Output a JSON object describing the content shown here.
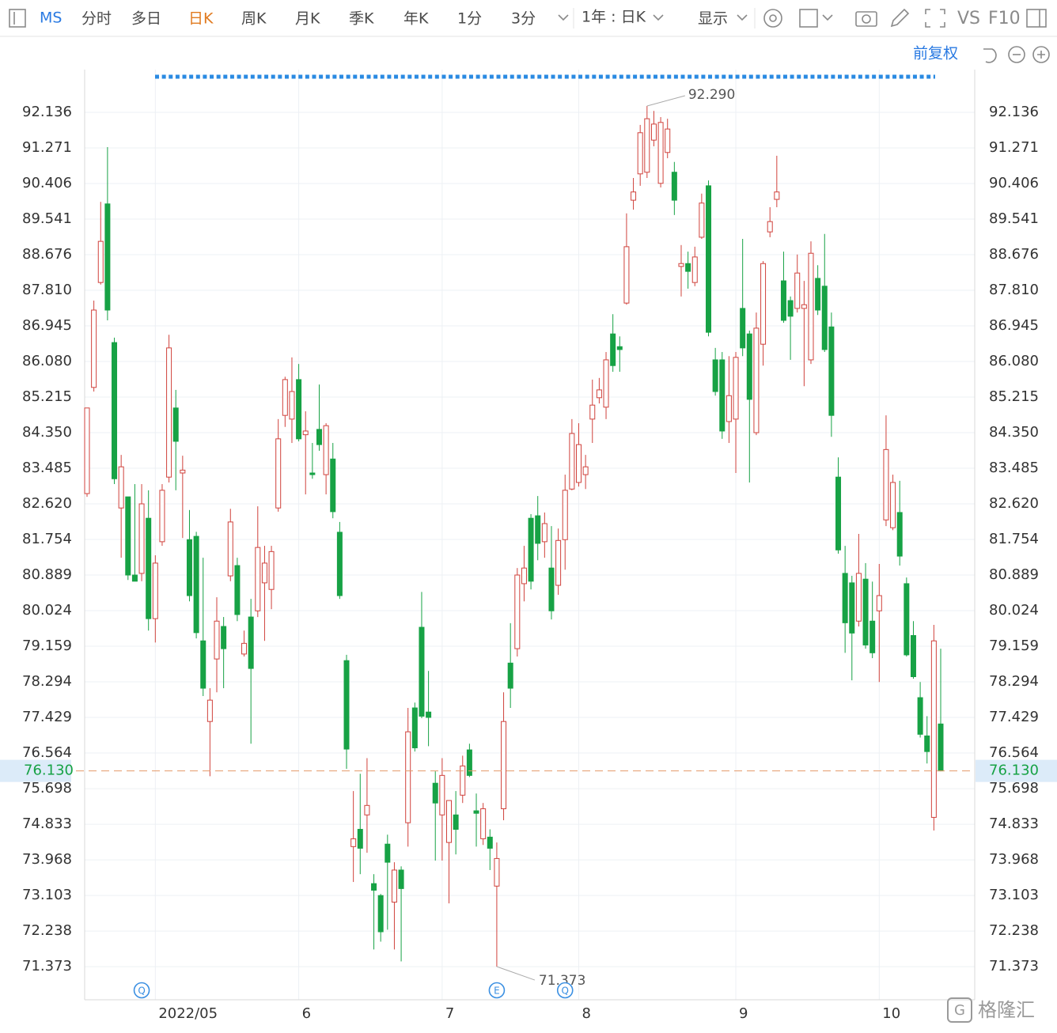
{
  "toolbar": {
    "symbol": "MS",
    "periods": [
      "分时",
      "多日",
      "日K",
      "周K",
      "月K",
      "季K",
      "年K",
      "1分",
      "3分"
    ],
    "range": "1年 : 日K",
    "display": "显示",
    "vs": "VS",
    "f10": "F10"
  },
  "adjust": "前复权",
  "watermark": "格隆汇",
  "chart_data": {
    "type": "candlestick",
    "up_color": "#d0423c",
    "down_color": "#17a245",
    "grid": true,
    "ylim": [
      70.567,
      93.174
    ],
    "yticks": [
      92.136,
      91.271,
      90.406,
      89.541,
      88.676,
      {
        "value": 87.81,
        "label": "87.810"
      },
      86.945,
      {
        "value": 86.08,
        "label": "86.080"
      },
      85.215,
      {
        "value": 84.35,
        "label": "84.350"
      },
      83.485,
      {
        "value": 82.62,
        "label": "82.620"
      },
      81.754,
      80.889,
      80.024,
      79.159,
      78.294,
      77.429,
      76.564,
      75.698,
      74.833,
      73.968,
      73.103,
      72.238,
      71.373
    ],
    "xticks": [
      {
        "value": 10,
        "label": "2022/05"
      },
      {
        "value": 31,
        "label": "6"
      },
      {
        "value": 52,
        "label": "7"
      },
      {
        "value": 72,
        "label": "8"
      },
      {
        "value": 95,
        "label": "9"
      },
      {
        "value": 116,
        "label": "10"
      }
    ],
    "last_price": {
      "value": 76.13,
      "label": "76.130"
    },
    "max_label": {
      "value": 92.29,
      "label": "92.290"
    },
    "min_label": 71.373,
    "events": [
      {
        "x": 8,
        "label": "Q"
      },
      {
        "x": 60,
        "label": "E"
      },
      {
        "x": 70,
        "label": "Q"
      }
    ],
    "open": [
      82.87,
      85.45,
      88.0,
      89.91,
      86.54,
      82.52,
      82.79,
      80.89,
      80.93,
      82.27,
      79.83,
      81.7,
      83.27,
      84.95,
      83.37,
      81.75,
      81.83,
      79.29,
      77.33,
      78.85,
      79.64,
      80.87,
      81.12,
      78.97,
      79.87,
      80.02,
      80.7,
      80.54,
      82.52,
      84.77,
      84.68,
      85.64,
      84.3,
      83.37,
      84.43,
      83.33,
      83.71,
      81.93,
      78.81,
      74.29,
      74.71,
      75.06,
      73.39,
      73.1,
      74.35,
      72.94,
      73.72,
      74.87,
      77.66,
      79.62,
      77.56,
      75.83,
      75.06,
      74.39,
      75.06,
      75.54,
      76.64,
      75.16,
      74.48,
      74.52,
      73.33,
      75.21,
      78.75,
      79.1,
      80.68,
      82.27,
      82.33,
      81.7,
      81.06,
      80.64,
      81.75,
      82.98,
      83.14,
      83.33,
      84.68,
      85.2,
      84.97,
      86.75,
      86.44,
      87.5,
      90.0,
      90.64,
      90.68,
      91.46,
      90.41,
      91.16,
      90.68,
      88.39,
      88.46,
      88.0,
      89.1,
      90.35,
      86.12,
      86.12,
      84.62,
      84.68,
      87.37,
      86.75,
      84.35,
      86.5,
      89.23,
      90.02,
      88.04,
      87.56,
      87.37,
      87.37,
      86.12,
      88.1,
      87.91,
      86.92,
      83.27,
      80.93,
      80.7,
      79.77,
      80.79,
      79.77,
      80.02,
      82.23,
      82.04,
      82.41,
      80.68,
      79.42,
      77.91,
      76.98,
      75.0,
      77.27
    ],
    "high": [
      84.95,
      87.56,
      89.96,
      91.29,
      86.66,
      83.81,
      82.79,
      83.1,
      83.1,
      82.95,
      81.37,
      83.1,
      86.73,
      85.39,
      83.79,
      82.47,
      81.94,
      81.31,
      78.14,
      80.35,
      79.87,
      82.5,
      81.31,
      79.54,
      80.31,
      82.56,
      81.6,
      81.6,
      84.68,
      85.71,
      86.18,
      86.02,
      84.87,
      84.1,
      85.52,
      84.58,
      84.1,
      82.18,
      78.95,
      75.64,
      76.06,
      76.44,
      73.62,
      73.14,
      74.58,
      73.91,
      73.81,
      77.66,
      77.79,
      80.48,
      78.56,
      76.12,
      76.44,
      75.41,
      75.64,
      76.5,
      76.79,
      75.58,
      75.35,
      74.71,
      74.39,
      78.04,
      79.72,
      81.06,
      81.6,
      82.37,
      82.81,
      82.41,
      82.08,
      82.02,
      83.33,
      84.68,
      84.58,
      83.81,
      85.64,
      85.68,
      86.31,
      87.23,
      86.69,
      89.68,
      90.54,
      91.83,
      92.29,
      92.17,
      92.02,
      91.98,
      90.93,
      88.91,
      88.75,
      88.87,
      90.16,
      90.48,
      86.41,
      86.31,
      86.21,
      86.31,
      89.06,
      86.83,
      87.27,
      88.52,
      89.83,
      91.08,
      88.75,
      87.66,
      88.68,
      88.04,
      89.0,
      88.42,
      89.18,
      87.27,
      83.75,
      81.6,
      80.87,
      81.89,
      81.18,
      80.73,
      81.16,
      84.77,
      83.33,
      83.18,
      80.83,
      79.77,
      78.29,
      77.46,
      79.68,
      79.1
    ],
    "low": [
      82.79,
      85.35,
      87.95,
      87.08,
      83.1,
      81.31,
      80.77,
      80.74,
      80.74,
      79.54,
      79.25,
      81.6,
      83.14,
      82.95,
      81.79,
      80.25,
      79.35,
      77.95,
      76.0,
      78.04,
      78.14,
      80.74,
      79.77,
      78.91,
      76.79,
      79.87,
      79.29,
      80.06,
      82.43,
      84.49,
      84.1,
      84.14,
      82.85,
      83.23,
      83.91,
      82.85,
      82.27,
      80.31,
      76.18,
      73.43,
      73.62,
      74.14,
      71.79,
      71.98,
      72.27,
      71.79,
      71.5,
      74.29,
      76.6,
      77.41,
      76.73,
      73.95,
      73.95,
      72.91,
      74.1,
      75.35,
      75.98,
      74.29,
      74.33,
      73.72,
      71.373,
      74.93,
      77.66,
      78.91,
      80.25,
      80.54,
      81.25,
      81.31,
      79.81,
      80.41,
      81.02,
      82.95,
      83.04,
      82.98,
      84.1,
      85.06,
      84.68,
      85.83,
      85.83,
      87.46,
      89.77,
      90.35,
      90.54,
      91.31,
      90.31,
      91.02,
      89.64,
      87.66,
      87.85,
      87.91,
      89.06,
      86.69,
      85.25,
      84.2,
      84.1,
      83.37,
      86.21,
      83.14,
      84.29,
      85.98,
      89.1,
      89.83,
      87.02,
      86.12,
      87.27,
      85.48,
      86.02,
      87.21,
      86.31,
      84.25,
      81.41,
      79.0,
      78.33,
      79.64,
      79.1,
      78.87,
      78.29,
      82.08,
      81.98,
      81.12,
      78.91,
      78.37,
      76.94,
      76.31,
      74.68,
      76.12
    ],
    "close": [
      84.95,
      87.33,
      89.0,
      87.33,
      83.23,
      83.52,
      80.89,
      80.74,
      82.62,
      79.83,
      81.18,
      82.95,
      86.41,
      84.14,
      83.44,
      80.39,
      79.49,
      78.14,
      77.85,
      79.77,
      79.1,
      82.18,
      79.93,
      79.23,
      78.62,
      81.56,
      81.18,
      81.46,
      84.2,
      85.64,
      85.35,
      84.2,
      84.39,
      83.33,
      84.06,
      84.52,
      82.43,
      80.39,
      76.66,
      74.48,
      74.25,
      75.29,
      73.23,
      72.22,
      73.91,
      73.72,
      73.27,
      77.08,
      76.69,
      77.46,
      77.43,
      75.35,
      76.02,
      75.41,
      74.71,
      76.25,
      76.02,
      75.1,
      75.21,
      74.25,
      74.0,
      77.33,
      78.14,
      80.89,
      81.06,
      80.74,
      81.66,
      82.14,
      80.02,
      81.73,
      82.95,
      84.33,
      84.06,
      83.52,
      85.02,
      85.39,
      86.12,
      85.98,
      86.37,
      88.87,
      90.2,
      91.64,
      91.98,
      91.85,
      91.89,
      91.73,
      90.0,
      88.46,
      88.27,
      88.62,
      89.93,
      86.79,
      85.35,
      84.39,
      85.25,
      86.18,
      86.41,
      85.16,
      86.89,
      88.46,
      89.48,
      90.2,
      87.08,
      87.18,
      88.23,
      87.46,
      88.71,
      87.33,
      86.37,
      84.77,
      81.5,
      79.73,
      79.48,
      80.93,
      79.19,
      79.0,
      80.39,
      83.94,
      83.14,
      81.35,
      78.95,
      78.42,
      77.02,
      76.6,
      79.29,
      76.13
    ]
  }
}
